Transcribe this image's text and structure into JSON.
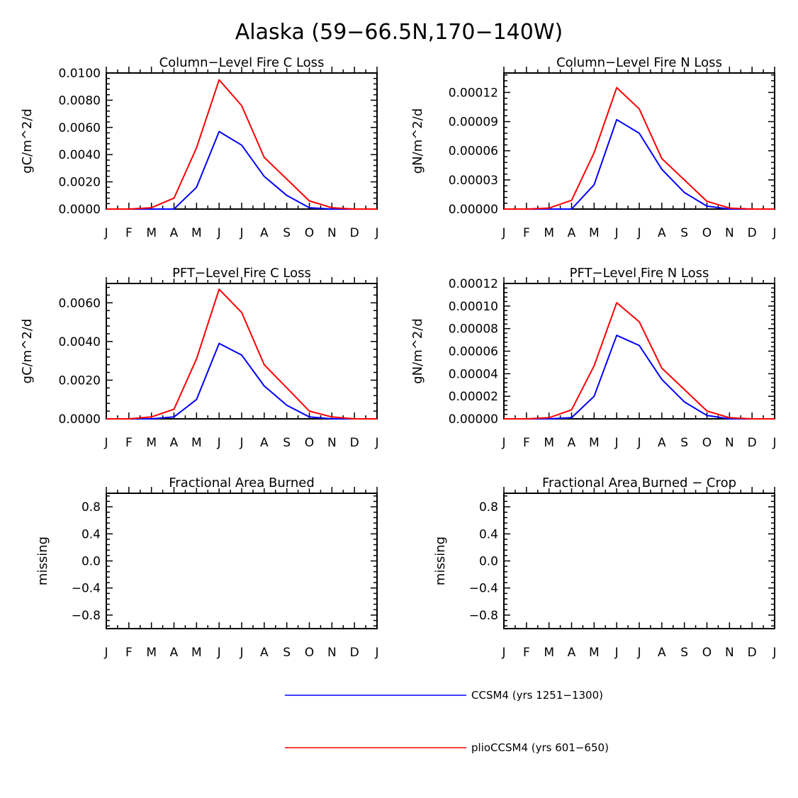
{
  "figure": {
    "title": "Alaska (59−66.5N,170−140W)"
  },
  "months": [
    "J",
    "F",
    "M",
    "A",
    "M",
    "J",
    "J",
    "A",
    "S",
    "O",
    "N",
    "D",
    "J"
  ],
  "series_colors": {
    "blue": "#0000ff",
    "red": "#ff0000"
  },
  "legend": [
    {
      "label": "CCSM4 (yrs 1251−1300)",
      "color": "#0000ff"
    },
    {
      "label": "plioCCSM4 (yrs 601−650)",
      "color": "#ff0000"
    }
  ],
  "chart_data": [
    {
      "type": "line",
      "title": "Column−Level Fire C Loss",
      "ylabel": "gC/m^2/d",
      "ylim": [
        0,
        0.01
      ],
      "yticks": [
        0,
        0.002,
        0.004,
        0.006,
        0.008,
        0.01
      ],
      "ytick_labels": [
        "0.0000",
        "0.0020",
        "0.0040",
        "0.0060",
        "0.0080",
        "0.0100"
      ],
      "x": [
        1,
        2,
        3,
        4,
        5,
        6,
        7,
        8,
        9,
        10,
        11,
        12,
        13
      ],
      "xlim": [
        1,
        13
      ],
      "series": [
        {
          "name": "CCSM4 (yrs 1251−1300)",
          "color": "#0000ff",
          "values": [
            0,
            0,
            0,
            0,
            0.0016,
            0.0057,
            0.0047,
            0.0024,
            0.001,
            0.0001,
            0,
            0,
            0
          ]
        },
        {
          "name": "plioCCSM4 (yrs 601−650)",
          "color": "#ff0000",
          "values": [
            0,
            0,
            0.0001,
            0.0008,
            0.0045,
            0.0095,
            0.0076,
            0.0038,
            0.0022,
            0.0006,
            0.0001,
            0,
            0
          ]
        }
      ]
    },
    {
      "type": "line",
      "title": "Column−Level Fire N Loss",
      "ylabel": "gN/m^2/d",
      "ylim": [
        0,
        0.00014
      ],
      "yticks": [
        0,
        3e-05,
        6e-05,
        9e-05,
        0.00012
      ],
      "ytick_labels": [
        "0.00000",
        "0.00003",
        "0.00006",
        "0.00009",
        "0.00012"
      ],
      "x": [
        1,
        2,
        3,
        4,
        5,
        6,
        7,
        8,
        9,
        10,
        11,
        12,
        13
      ],
      "xlim": [
        1,
        13
      ],
      "series": [
        {
          "name": "CCSM4 (yrs 1251−1300)",
          "color": "#0000ff",
          "values": [
            0,
            0,
            0,
            0,
            2.5e-05,
            9.2e-05,
            7.8e-05,
            4.1e-05,
            1.7e-05,
            3e-06,
            0,
            0,
            0
          ]
        },
        {
          "name": "plioCCSM4 (yrs 601−650)",
          "color": "#ff0000",
          "values": [
            0,
            0,
            1e-06,
            9e-06,
            5.8e-05,
            0.000125,
            0.000103,
            5.2e-05,
            3e-05,
            8e-06,
            1e-06,
            0,
            0
          ]
        }
      ]
    },
    {
      "type": "line",
      "title": "PFT−Level Fire C Loss",
      "ylabel": "gC/m^2/d",
      "ylim": [
        0,
        0.007
      ],
      "yticks": [
        0,
        0.002,
        0.004,
        0.006
      ],
      "ytick_labels": [
        "0.0000",
        "0.0020",
        "0.0040",
        "0.0060"
      ],
      "x": [
        1,
        2,
        3,
        4,
        5,
        6,
        7,
        8,
        9,
        10,
        11,
        12,
        13
      ],
      "xlim": [
        1,
        13
      ],
      "series": [
        {
          "name": "CCSM4 (yrs 1251−1300)",
          "color": "#0000ff",
          "values": [
            0,
            0,
            0,
            0.0001,
            0.001,
            0.0039,
            0.0033,
            0.0017,
            0.0007,
            0.0001,
            0,
            0,
            0
          ]
        },
        {
          "name": "plioCCSM4 (yrs 601−650)",
          "color": "#ff0000",
          "values": [
            0,
            0,
            0.0001,
            0.0005,
            0.0031,
            0.0067,
            0.0055,
            0.0028,
            0.0016,
            0.0004,
            0.0001,
            0,
            0
          ]
        }
      ]
    },
    {
      "type": "line",
      "title": "PFT−Level Fire N Loss",
      "ylabel": "gN/m^2/d",
      "ylim": [
        0,
        0.00012
      ],
      "yticks": [
        0,
        2e-05,
        4e-05,
        6e-05,
        8e-05,
        0.0001,
        0.00012
      ],
      "ytick_labels": [
        "0.00000",
        "0.00002",
        "0.00004",
        "0.00006",
        "0.00008",
        "0.00010",
        "0.00012"
      ],
      "x": [
        1,
        2,
        3,
        4,
        5,
        6,
        7,
        8,
        9,
        10,
        11,
        12,
        13
      ],
      "xlim": [
        1,
        13
      ],
      "series": [
        {
          "name": "CCSM4 (yrs 1251−1300)",
          "color": "#0000ff",
          "values": [
            0,
            0,
            0,
            1e-06,
            2e-05,
            7.4e-05,
            6.5e-05,
            3.5e-05,
            1.5e-05,
            3e-06,
            0,
            0,
            0
          ]
        },
        {
          "name": "plioCCSM4 (yrs 601−650)",
          "color": "#ff0000",
          "values": [
            0,
            0,
            1e-06,
            8e-06,
            4.7e-05,
            0.000103,
            8.6e-05,
            4.5e-05,
            2.6e-05,
            7e-06,
            1e-06,
            0,
            0
          ]
        }
      ]
    },
    {
      "type": "line",
      "title": "Fractional Area Burned",
      "ylabel": "missing",
      "ylim": [
        -1,
        1
      ],
      "yticks": [
        -0.8,
        -0.4,
        0,
        0.4,
        0.8
      ],
      "ytick_labels": [
        "−0.8",
        "−0.4",
        "0.0",
        "0.4",
        "0.8"
      ],
      "x": [
        1,
        2,
        3,
        4,
        5,
        6,
        7,
        8,
        9,
        10,
        11,
        12,
        13
      ],
      "xlim": [
        1,
        13
      ],
      "series": []
    },
    {
      "type": "line",
      "title": "Fractional Area Burned − Crop",
      "ylabel": "missing",
      "ylim": [
        -1,
        1
      ],
      "yticks": [
        -0.8,
        -0.4,
        0,
        0.4,
        0.8
      ],
      "ytick_labels": [
        "−0.8",
        "−0.4",
        "0.0",
        "0.4",
        "0.8"
      ],
      "x": [
        1,
        2,
        3,
        4,
        5,
        6,
        7,
        8,
        9,
        10,
        11,
        12,
        13
      ],
      "xlim": [
        1,
        13
      ],
      "series": []
    }
  ]
}
